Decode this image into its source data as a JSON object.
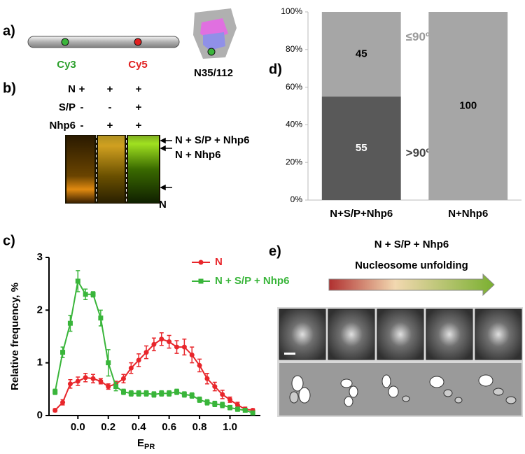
{
  "panels": [
    "a)",
    "b)",
    "c)",
    "d)",
    "e)"
  ],
  "panel_a": {
    "dyes": [
      "Cy3",
      "Cy5"
    ],
    "construct": "N35/112"
  },
  "panel_b": {
    "row_labels": [
      "N",
      "S/P",
      "Nhp6"
    ],
    "lanes": [
      [
        "+",
        "+",
        "+"
      ],
      [
        "-",
        "-",
        "+"
      ],
      [
        "-",
        "+",
        "+"
      ]
    ],
    "band_labels": [
      "N + S/P + Nhp6",
      "N + Nhp6",
      "N"
    ]
  },
  "chart_data": [
    {
      "type": "line",
      "ylabel": "Relative frequency, %",
      "xlabel": {
        "main": "E",
        "sub": "PR"
      },
      "x": [
        -0.15,
        -0.1,
        -0.05,
        0,
        0.05,
        0.1,
        0.15,
        0.2,
        0.25,
        0.3,
        0.35,
        0.4,
        0.45,
        0.5,
        0.55,
        0.6,
        0.65,
        0.7,
        0.75,
        0.8,
        0.85,
        0.9,
        0.95,
        1,
        1.05,
        1.1,
        1.15
      ],
      "series": [
        {
          "name": "N",
          "color": "#e8262b",
          "marker": "circle",
          "values": [
            0.1,
            0.25,
            0.6,
            0.65,
            0.72,
            0.7,
            0.65,
            0.55,
            0.6,
            0.7,
            0.9,
            1.05,
            1.2,
            1.35,
            1.45,
            1.4,
            1.3,
            1.3,
            1.15,
            0.95,
            0.7,
            0.55,
            0.4,
            0.3,
            0.2,
            0.12,
            0.1
          ],
          "errors": [
            0.03,
            0.05,
            0.08,
            0.08,
            0.08,
            0.08,
            0.05,
            0.05,
            0.05,
            0.08,
            0.1,
            0.12,
            0.12,
            0.12,
            0.12,
            0.12,
            0.12,
            0.15,
            0.15,
            0.12,
            0.1,
            0.08,
            0.08,
            0.05,
            0.05,
            0.04,
            0.03
          ]
        },
        {
          "name": "N + S/P + Nhp6",
          "color": "#39b53a",
          "marker": "square",
          "values": [
            0.45,
            1.2,
            1.75,
            2.55,
            2.3,
            2.3,
            1.85,
            1.0,
            0.55,
            0.45,
            0.42,
            0.42,
            0.42,
            0.4,
            0.42,
            0.42,
            0.45,
            0.4,
            0.38,
            0.3,
            0.25,
            0.22,
            0.2,
            0.15,
            0.12,
            0.1,
            0.05
          ],
          "errors": [
            0.05,
            0.1,
            0.15,
            0.2,
            0.1,
            0.05,
            0.15,
            0.25,
            0.08,
            0.05,
            0.05,
            0.05,
            0.05,
            0.05,
            0.05,
            0.05,
            0.05,
            0.05,
            0.05,
            0.05,
            0.05,
            0.05,
            0.05,
            0.04,
            0.04,
            0.03,
            0.03
          ]
        }
      ],
      "xlim": [
        -0.19,
        1.2
      ],
      "xticks": [
        {
          "value": 0,
          "label": "0.0"
        },
        0.2,
        0.4,
        0.6,
        0.8,
        {
          "value": 1,
          "label": "1.0"
        }
      ],
      "ylim": [
        0,
        3
      ],
      "yticks": [
        0,
        1,
        2,
        3
      ]
    },
    {
      "type": "bar",
      "stacked": true,
      "categories": [
        "N+S/P+Nhp6",
        "N+Nhp6"
      ],
      "series": [
        {
          "name": ">90º",
          "color": "#595959",
          "label_color": "#444444",
          "value_text_color": "#ffffff",
          "values": [
            55,
            0
          ]
        },
        {
          "name": "≤90º",
          "color": "#a6a6a6",
          "label_color": "#999999",
          "value_text_color": "#000000",
          "values": [
            45,
            100
          ]
        }
      ],
      "ylim": [
        0,
        100
      ],
      "yticks": [
        {
          "value": 0,
          "label": "0%"
        },
        {
          "value": 20,
          "label": "20%"
        },
        {
          "value": 40,
          "label": "40%"
        },
        {
          "value": 60,
          "label": "60%"
        },
        {
          "value": 80,
          "label": "80%"
        },
        {
          "value": 100,
          "label": "100%"
        }
      ]
    }
  ],
  "panel_e": {
    "title": "N + S/P + Nhp6",
    "subtitle": "Nucleosome unfolding"
  }
}
